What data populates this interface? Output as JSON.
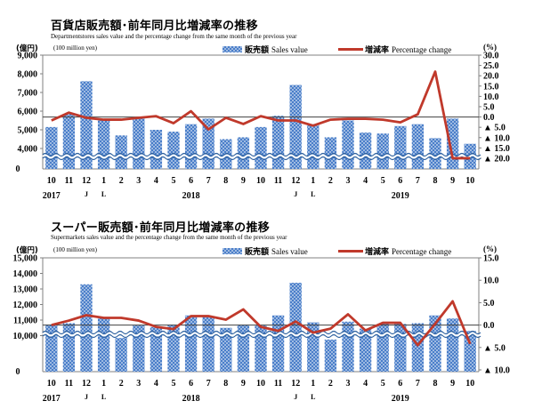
{
  "colors": {
    "bar": "#4a7ec9",
    "bar_light": "#dbe6f5",
    "line": "#c0392b",
    "break_line": "#2b5f9e",
    "axis": "#808080",
    "zero_line": "#404040"
  },
  "legend": {
    "bar_jp": "販売額",
    "bar_en": "Sales value",
    "line_jp": "増減率",
    "line_en": "Percentage change"
  },
  "chart_data": [
    {
      "type": "bar+line",
      "title": "百貨店販売額･前年同月比増減率の推移",
      "subtitle": "Departmentstores sales value and the percentage change from the same month of the previous year",
      "ylabel_left_jp": "(億円)",
      "ylabel_left_en": "(100 million yen)",
      "ylabel_right": "(%)",
      "categories": [
        "10",
        "11",
        "12",
        "1",
        "2",
        "3",
        "4",
        "5",
        "6",
        "7",
        "8",
        "9",
        "10",
        "11",
        "12",
        "1",
        "2",
        "3",
        "4",
        "5",
        "6",
        "7",
        "8",
        "9",
        "10"
      ],
      "year_labels": [
        {
          "label": "2017",
          "index": 0
        },
        {
          "label": "2018",
          "index": 8
        },
        {
          "label": "2019",
          "index": 20
        }
      ],
      "break_marks": [
        {
          "label": "J",
          "index": 2
        },
        {
          "label": "L",
          "index": 3
        },
        {
          "label": "J",
          "index": 14
        },
        {
          "label": "L",
          "index": 15
        }
      ],
      "left_axis": {
        "ticks": [
          "9,000",
          "8,000",
          "7,000",
          "6,000",
          "5,000",
          "4,000"
        ],
        "tick_values": [
          9000,
          8000,
          7000,
          6000,
          5000,
          4000
        ],
        "zero_label": "0",
        "ylim": [
          4000,
          9000
        ]
      },
      "right_axis": {
        "ticks": [
          "30.0",
          "25.0",
          "20.0",
          "15.0",
          "10.0",
          "5.0",
          "0.0",
          "▲ 5.0",
          "▲ 10.0",
          "▲ 15.0",
          "▲ 20.0"
        ],
        "tick_values": [
          30,
          25,
          20,
          15,
          10,
          5,
          0,
          -5,
          -10,
          -15,
          -20
        ],
        "ylim": [
          -22.5,
          30
        ]
      },
      "series": [
        {
          "name": "Sales value",
          "type": "bar",
          "values": [
            5150,
            5850,
            7600,
            5500,
            4700,
            5600,
            5000,
            4900,
            5300,
            5600,
            4500,
            4600,
            5150,
            5750,
            7400,
            5300,
            4600,
            5500,
            4850,
            4800,
            5200,
            5300,
            4550,
            5600,
            4250
          ]
        },
        {
          "name": "Percentage change",
          "type": "line",
          "values": [
            -1.7,
            2.1,
            -0.4,
            -1.3,
            -1.3,
            -0.4,
            0.4,
            -3.0,
            2.8,
            -6.0,
            -0.4,
            -3.4,
            0.4,
            -1.7,
            -1.7,
            -4.2,
            -1.3,
            -0.9,
            -0.9,
            -1.3,
            -2.6,
            1.3,
            22.0,
            -20.0,
            -20.0
          ]
        }
      ]
    },
    {
      "type": "bar+line",
      "title": "スーパー販売額･前年同月比増減率の推移",
      "subtitle": "Supermarkets sales value and the percentage change from the same month of the previous year",
      "ylabel_left_jp": "(億円)",
      "ylabel_left_en": "(100 million yen)",
      "ylabel_right": "(%)",
      "categories": [
        "10",
        "11",
        "12",
        "1",
        "2",
        "3",
        "4",
        "5",
        "6",
        "7",
        "8",
        "9",
        "10",
        "11",
        "12",
        "1",
        "2",
        "3",
        "4",
        "5",
        "6",
        "7",
        "8",
        "9",
        "10"
      ],
      "year_labels": [
        {
          "label": "2017",
          "index": 0
        },
        {
          "label": "2018",
          "index": 8
        },
        {
          "label": "2019",
          "index": 20
        }
      ],
      "break_marks": [
        {
          "label": "J",
          "index": 2
        },
        {
          "label": "L",
          "index": 3
        },
        {
          "label": "J",
          "index": 14
        },
        {
          "label": "L",
          "index": 15
        }
      ],
      "left_axis": {
        "ticks": [
          "15,000",
          "14,000",
          "13,000",
          "12,000",
          "11,000",
          "10,000"
        ],
        "tick_values": [
          15000,
          14000,
          13000,
          12000,
          11000,
          10000
        ],
        "zero_label": "0",
        "ylim": [
          9000,
          15000
        ]
      },
      "right_axis": {
        "ticks": [
          "15.0",
          "10.0",
          "5.0",
          "0.0",
          "▲ 5.0",
          "▲ 10.0"
        ],
        "tick_values": [
          15,
          10,
          5,
          0,
          -5,
          -10
        ],
        "ylim": [
          -10,
          15
        ]
      },
      "series": [
        {
          "name": "Sales value",
          "type": "bar",
          "values": [
            10700,
            10800,
            13300,
            11150,
            9850,
            10650,
            10550,
            10700,
            11300,
            11200,
            10500,
            10700,
            10650,
            11300,
            13400,
            10850,
            9750,
            10900,
            10450,
            10750,
            10750,
            10800,
            11300,
            11100,
            10300
          ]
        },
        {
          "name": "Percentage change",
          "type": "line",
          "values": [
            0.0,
            1.0,
            2.2,
            1.6,
            1.6,
            1.0,
            -0.4,
            -0.9,
            2.0,
            2.0,
            1.2,
            3.5,
            -0.4,
            -1.3,
            0.8,
            -1.7,
            -0.8,
            2.4,
            -1.2,
            0.5,
            0.5,
            -4.5,
            0.3,
            5.3,
            -4.2
          ]
        }
      ]
    }
  ]
}
